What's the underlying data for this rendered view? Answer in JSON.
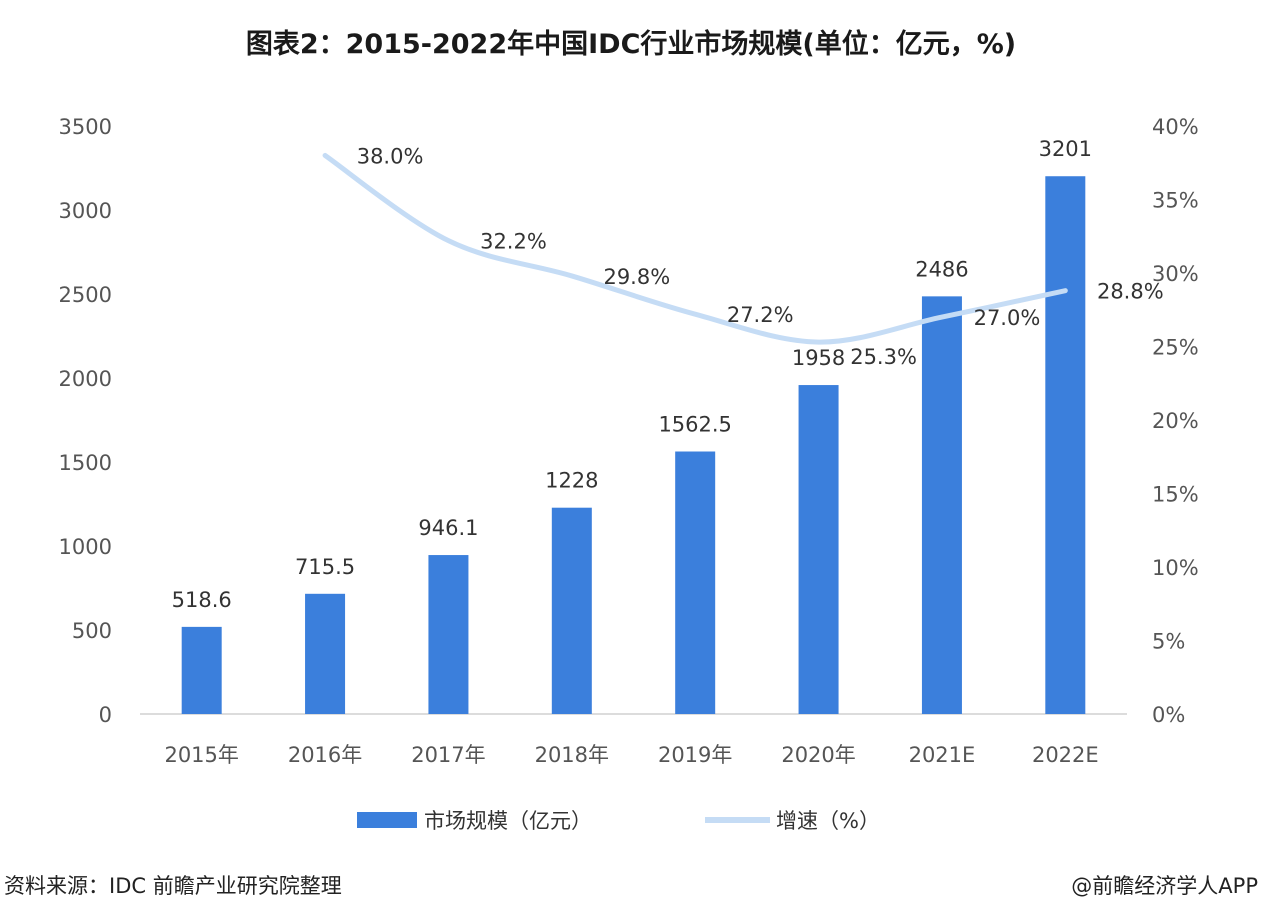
{
  "title": "图表2：2015-2022年中国IDC行业市场规模(单位：亿元，%)",
  "source": "资料来源：IDC 前瞻产业研究院整理",
  "credit": "@前瞻经济学人APP",
  "colors": {
    "bar": "#3b7fdc",
    "line": "#c5dcf5"
  },
  "chart_data": {
    "type": "bar+line",
    "categories": [
      "2015年",
      "2016年",
      "2017年",
      "2018年",
      "2019年",
      "2020年",
      "2021E",
      "2022E"
    ],
    "series": [
      {
        "name": "市场规模（亿元）",
        "type": "bar",
        "axis": "left",
        "values": [
          518.6,
          715.5,
          946.1,
          1228,
          1562.5,
          1958,
          2486,
          3201
        ],
        "labels": [
          "518.6",
          "715.5",
          "946.1",
          "1228",
          "1562.5",
          "1958",
          "2486",
          "3201"
        ]
      },
      {
        "name": "增速（%）",
        "type": "line",
        "axis": "right",
        "values": [
          null,
          38.0,
          32.2,
          29.8,
          27.2,
          25.3,
          27.0,
          28.8
        ],
        "labels": [
          "",
          "38.0%",
          "32.2%",
          "29.8%",
          "27.2%",
          "25.3%",
          "27.0%",
          "28.8%"
        ]
      }
    ],
    "left_axis": {
      "range": [
        0,
        3500
      ],
      "ticks": [
        "0",
        "500",
        "1000",
        "1500",
        "2000",
        "2500",
        "3000",
        "3500"
      ]
    },
    "right_axis": {
      "range": [
        0,
        40
      ],
      "ticks": [
        "0%",
        "5%",
        "10%",
        "15%",
        "20%",
        "25%",
        "30%",
        "35%",
        "40%"
      ]
    },
    "grid": false,
    "legend_position": "bottom"
  }
}
